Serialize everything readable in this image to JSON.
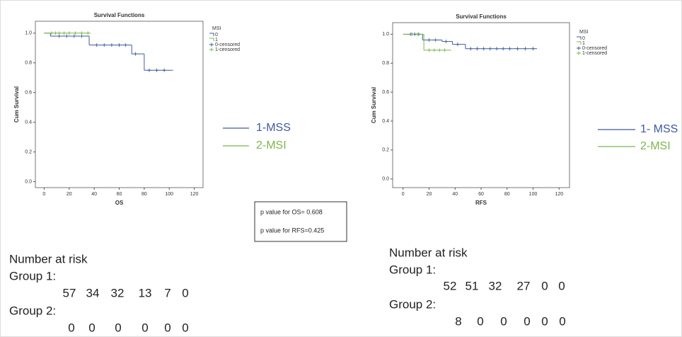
{
  "chart_data": [
    {
      "type": "line",
      "step": true,
      "title": "Survival Functions",
      "xlabel": "OS",
      "ylabel": "Cum Survival",
      "legend_title": "MSI",
      "xlim": [
        -7,
        127
      ],
      "xticks": [
        0,
        20,
        40,
        60,
        80,
        100,
        120
      ],
      "ylim": [
        -0.04,
        1.08
      ],
      "yticks": [
        {
          "value": 0,
          "label": "0.0"
        },
        {
          "value": 0.2,
          "label": "0.2"
        },
        {
          "value": 0.4,
          "label": "0.4"
        },
        {
          "value": 0.6,
          "label": "0.6"
        },
        {
          "value": 0.8,
          "label": "0.8"
        },
        {
          "value": 1,
          "label": "1.0"
        }
      ],
      "series": [
        {
          "name": "0",
          "color": "#3d5a9e",
          "x": [
            0,
            5,
            36,
            70,
            80,
            103
          ],
          "values": [
            1.0,
            0.98,
            0.92,
            0.86,
            0.75,
            0.75
          ]
        },
        {
          "name": "1",
          "color": "#7bb84a",
          "x": [
            0,
            37
          ],
          "values": [
            1.0,
            1.0
          ]
        },
        {
          "name": "0-censored",
          "color": "#3d5a9e",
          "marker": "+",
          "x": [
            12,
            18,
            24,
            30,
            42,
            48,
            54,
            60,
            65,
            73,
            84,
            90,
            96
          ],
          "values": [
            0.98,
            0.98,
            0.98,
            0.98,
            0.92,
            0.92,
            0.92,
            0.92,
            0.92,
            0.86,
            0.75,
            0.75,
            0.75
          ]
        },
        {
          "name": "1-censored",
          "color": "#7bb84a",
          "marker": "+",
          "x": [
            6,
            9,
            12,
            16,
            20,
            25,
            30,
            35
          ],
          "values": [
            1.0,
            1.0,
            1.0,
            1.0,
            1.0,
            1.0,
            1.0,
            1.0
          ]
        }
      ]
    },
    {
      "type": "line",
      "step": true,
      "title": "Survival Functions",
      "xlabel": "RFS",
      "ylabel": "Cum Survival",
      "legend_title": "MSI",
      "xlim": [
        -8,
        128
      ],
      "xticks": [
        0,
        20,
        40,
        60,
        80,
        100,
        120
      ],
      "ylim": [
        -0.06,
        1.08
      ],
      "yticks": [
        {
          "value": 0,
          "label": "0.0"
        },
        {
          "value": 0.2,
          "label": "0.2"
        },
        {
          "value": 0.4,
          "label": "0.4"
        },
        {
          "value": 0.6,
          "label": "0.6"
        },
        {
          "value": 0.8,
          "label": "0.8"
        },
        {
          "value": 1,
          "label": "1.0"
        }
      ],
      "series": [
        {
          "name": "0",
          "color": "#3d5a9e",
          "x": [
            0,
            15,
            30,
            38,
            48,
            103
          ],
          "values": [
            1.0,
            0.96,
            0.95,
            0.93,
            0.9,
            0.9
          ]
        },
        {
          "name": "1",
          "color": "#7bb84a",
          "x": [
            0,
            16,
            37
          ],
          "values": [
            1.0,
            0.89,
            0.89
          ]
        },
        {
          "name": "0-censored",
          "color": "#3d5a9e",
          "marker": "+",
          "x": [
            6,
            9,
            12,
            20,
            25,
            33,
            42,
            52,
            57,
            62,
            67,
            72,
            77,
            82,
            88,
            94,
            100
          ],
          "values": [
            1.0,
            1.0,
            1.0,
            0.96,
            0.96,
            0.95,
            0.93,
            0.9,
            0.9,
            0.9,
            0.9,
            0.9,
            0.9,
            0.9,
            0.9,
            0.9,
            0.9
          ]
        },
        {
          "name": "1-censored",
          "color": "#7bb84a",
          "marker": "+",
          "x": [
            7,
            11,
            20,
            24,
            28,
            32
          ],
          "values": [
            1.0,
            1.0,
            0.89,
            0.89,
            0.89,
            0.89
          ]
        }
      ]
    }
  ],
  "legends": [
    {
      "entries": [
        {
          "label": "1-MSS",
          "color": "#3d5a9e"
        },
        {
          "label": "2-MSI",
          "color": "#7bb84a"
        }
      ]
    },
    {
      "entries": [
        {
          "label": "1- MSS",
          "color": "#3d5a9e"
        },
        {
          "label": "2-MSI",
          "color": "#7bb84a"
        }
      ]
    }
  ],
  "p_values": [
    "p value for OS= 0.608",
    "p value for RFS=0.425"
  ],
  "risk_tables": [
    {
      "title": "Number at risk",
      "groups": [
        {
          "label": "Group 1:",
          "counts": [
            57,
            34,
            32,
            13,
            7,
            0
          ]
        },
        {
          "label": "Group 2:",
          "counts": [
            0,
            0,
            0,
            0,
            0,
            0
          ]
        }
      ]
    },
    {
      "title": "Number at risk",
      "groups": [
        {
          "label": "Group 1:",
          "counts": [
            52,
            51,
            32,
            27,
            0,
            0
          ]
        },
        {
          "label": "Group 2:",
          "counts": [
            8,
            0,
            0,
            0,
            0,
            0
          ]
        }
      ]
    }
  ]
}
